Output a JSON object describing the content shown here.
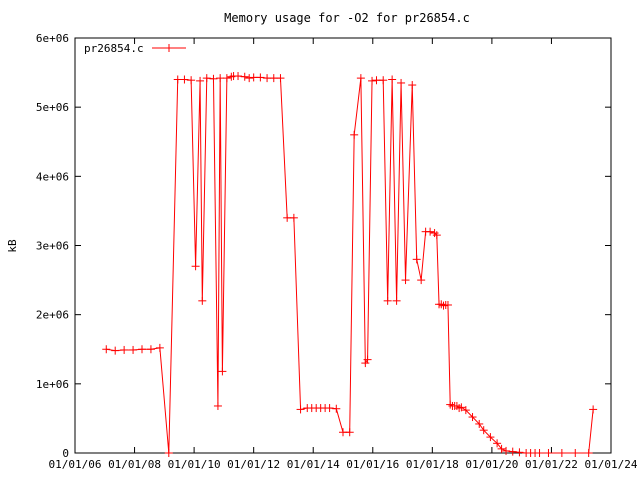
{
  "chart_data": {
    "type": "line",
    "title": "Memory usage for -O2 for pr26854.c",
    "xlabel": "",
    "ylabel": "kB",
    "x_tick_labels": [
      "01/01/06",
      "01/01/08",
      "01/01/10",
      "01/01/12",
      "01/01/14",
      "01/01/16",
      "01/01/18",
      "01/01/20",
      "01/01/22",
      "01/01/24"
    ],
    "y_tick_labels": [
      "0",
      "1e+06",
      "2e+06",
      "3e+06",
      "4e+06",
      "5e+06",
      "6e+06"
    ],
    "xlim": [
      0,
      24
    ],
    "ylim": [
      0,
      6000000
    ],
    "legend_position": "top-left",
    "grid": false,
    "series": [
      {
        "name": "pr26854.c",
        "color": "#ff0000",
        "marker": "plus",
        "x": [
          1.4,
          1.8,
          2.2,
          2.6,
          3.0,
          3.4,
          3.8,
          4.2,
          4.6,
          4.9,
          5.2,
          5.4,
          5.6,
          5.7,
          5.9,
          6.2,
          6.4,
          6.5,
          6.6,
          6.8,
          7.0,
          7.1,
          7.3,
          7.6,
          7.8,
          8.0,
          8.3,
          8.6,
          8.9,
          9.2,
          9.5,
          9.8,
          10.1,
          10.4,
          10.6,
          10.8,
          11.0,
          11.2,
          11.4,
          11.7,
          12.0,
          12.3,
          12.5,
          12.8,
          13.0,
          13.1,
          13.3,
          13.5,
          13.8,
          14.0,
          14.2,
          14.4,
          14.6,
          14.8,
          15.1,
          15.3,
          15.5,
          15.7,
          15.9,
          16.1,
          16.2,
          16.3,
          16.4,
          16.5,
          16.6,
          16.7,
          16.8,
          16.9,
          17.0,
          17.1,
          17.2,
          17.3,
          17.5,
          17.8,
          18.1,
          18.3,
          18.6,
          18.9,
          19.1,
          19.3,
          19.6,
          19.9,
          20.2,
          20.4,
          20.6,
          20.8,
          21.2,
          21.8,
          22.4,
          23.0,
          23.2
        ],
        "y": [
          1500000,
          1480000,
          1490000,
          1490000,
          1500000,
          1500000,
          1520000,
          0,
          5400000,
          5400000,
          5390000,
          2700000,
          5380000,
          2200000,
          5420000,
          5410000,
          680000,
          5420000,
          1180000,
          5420000,
          5440000,
          5450000,
          5450000,
          5440000,
          5420000,
          5430000,
          5430000,
          5420000,
          5420000,
          5420000,
          3400000,
          3400000,
          630000,
          650000,
          650000,
          650000,
          650000,
          650000,
          650000,
          640000,
          300000,
          300000,
          4600000,
          5420000,
          1300000,
          1350000,
          5380000,
          5390000,
          5390000,
          2200000,
          5400000,
          2200000,
          5350000,
          2500000,
          5320000,
          2800000,
          2500000,
          3200000,
          3200000,
          3180000,
          3150000,
          2150000,
          2150000,
          2130000,
          2140000,
          2140000,
          700000,
          680000,
          680000,
          680000,
          650000,
          660000,
          620000,
          520000,
          420000,
          330000,
          230000,
          140000,
          60000,
          30000,
          20000,
          10000,
          0,
          0,
          0,
          0,
          0,
          0,
          0,
          0,
          630000
        ]
      }
    ]
  }
}
